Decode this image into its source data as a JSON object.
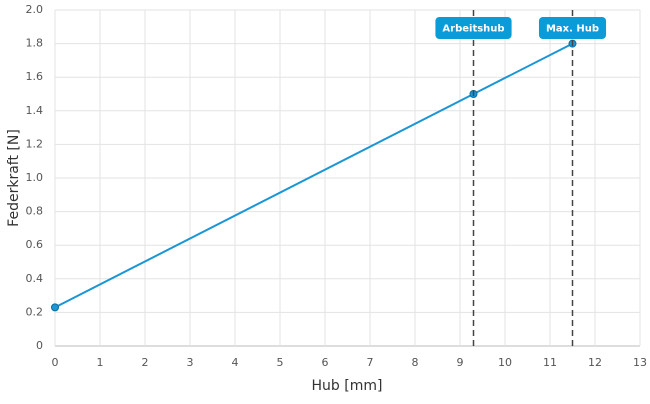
{
  "chart_data": {
    "type": "line",
    "x_label": "Hub [mm]",
    "y_label": "Federkraft [N]",
    "x": [
      0,
      9.3,
      11.5
    ],
    "series": [
      {
        "color": "#1a96d4",
        "values": [
          0.23,
          1.5,
          1.8
        ]
      }
    ],
    "xlim": [
      0,
      13
    ],
    "xticks": [
      0,
      1,
      2,
      3,
      4,
      5,
      6,
      7,
      8,
      9,
      10,
      11,
      12,
      13
    ],
    "ylim": [
      0,
      2.0
    ],
    "yticks": [
      0,
      0.2,
      0.4,
      0.6,
      0.8,
      {
        "value": 1.0,
        "label": "1.0"
      },
      1.2,
      1.4,
      1.6,
      1.8,
      {
        "value": 2.0,
        "label": "2.0"
      }
    ],
    "grid": true,
    "annotations": [
      {
        "x": 9.3,
        "label": "Arbeitshub"
      },
      {
        "x": 11.5,
        "label": "Max. Hub"
      }
    ]
  }
}
